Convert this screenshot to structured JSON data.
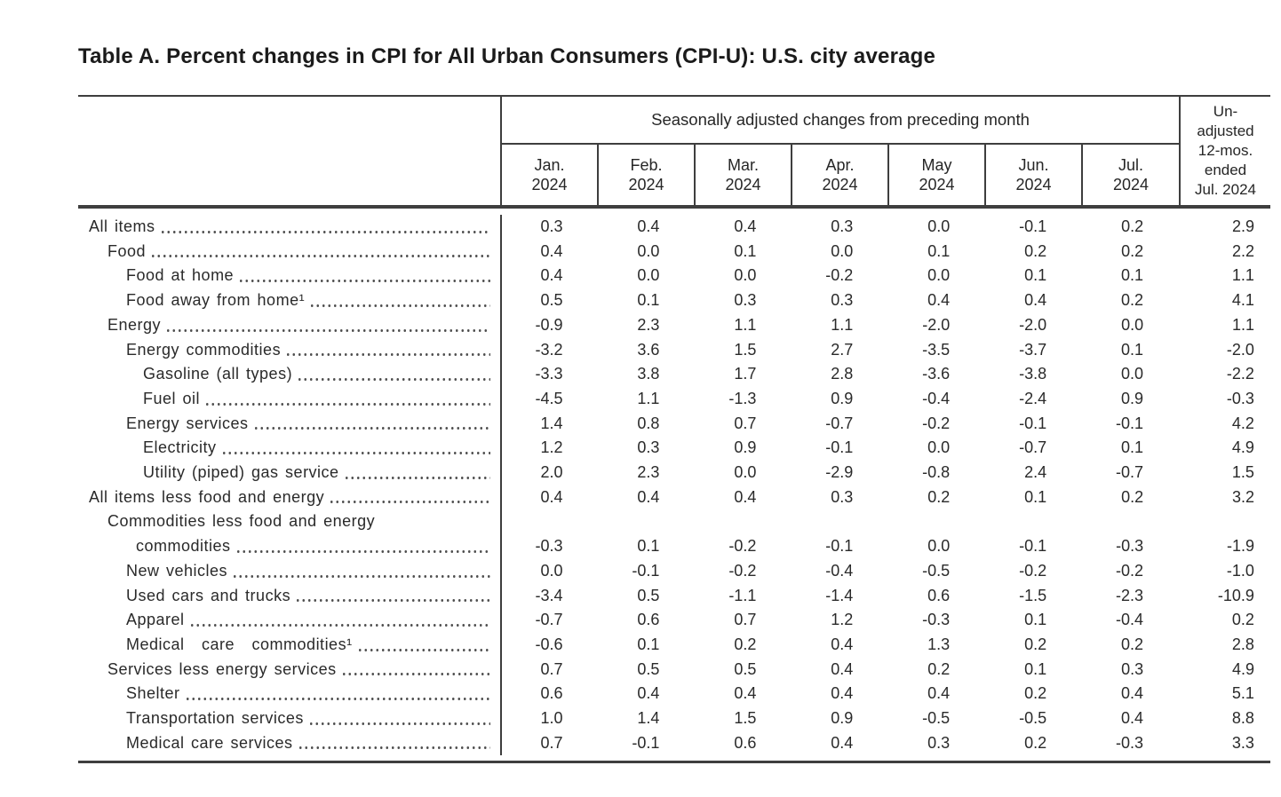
{
  "page": {
    "title": "Table A. Percent changes in CPI for All Urban Consumers (CPI-U): U.S. city average"
  },
  "table": {
    "header": {
      "group_label": "Seasonally adjusted changes from preceding month",
      "months": [
        {
          "line1": "Jan.",
          "line2": "2024"
        },
        {
          "line1": "Feb.",
          "line2": "2024"
        },
        {
          "line1": "Mar.",
          "line2": "2024"
        },
        {
          "line1": "Apr.",
          "line2": "2024"
        },
        {
          "line1": "May",
          "line2": "2024"
        },
        {
          "line1": "Jun.",
          "line2": "2024"
        },
        {
          "line1": "Jul.",
          "line2": "2024"
        }
      ],
      "unadjusted_lines": [
        "Un-",
        "adjusted",
        "12-mos.",
        "ended",
        "Jul. 2024"
      ]
    },
    "rows": [
      {
        "label": "All items",
        "indent": 0,
        "values": [
          "0.3",
          "0.4",
          "0.4",
          "0.3",
          "0.0",
          "-0.1",
          "0.2",
          "2.9"
        ]
      },
      {
        "label": "Food",
        "indent": 1,
        "values": [
          "0.4",
          "0.0",
          "0.1",
          "0.0",
          "0.1",
          "0.2",
          "0.2",
          "2.2"
        ]
      },
      {
        "label": "Food at home",
        "indent": 2,
        "values": [
          "0.4",
          "0.0",
          "0.0",
          "-0.2",
          "0.0",
          "0.1",
          "0.1",
          "1.1"
        ]
      },
      {
        "label": "Food away from home¹",
        "indent": 2,
        "values": [
          "0.5",
          "0.1",
          "0.3",
          "0.3",
          "0.4",
          "0.4",
          "0.2",
          "4.1"
        ]
      },
      {
        "label": "Energy",
        "indent": 1,
        "values": [
          "-0.9",
          "2.3",
          "1.1",
          "1.1",
          "-2.0",
          "-2.0",
          "0.0",
          "1.1"
        ]
      },
      {
        "label": "Energy commodities",
        "indent": 2,
        "values": [
          "-3.2",
          "3.6",
          "1.5",
          "2.7",
          "-3.5",
          "-3.7",
          "0.1",
          "-2.0"
        ]
      },
      {
        "label": "Gasoline (all types)",
        "indent": 3,
        "values": [
          "-3.3",
          "3.8",
          "1.7",
          "2.8",
          "-3.6",
          "-3.8",
          "0.0",
          "-2.2"
        ]
      },
      {
        "label": "Fuel oil",
        "indent": 3,
        "values": [
          "-4.5",
          "1.1",
          "-1.3",
          "0.9",
          "-0.4",
          "-2.4",
          "0.9",
          "-0.3"
        ]
      },
      {
        "label": "Energy services",
        "indent": 2,
        "values": [
          "1.4",
          "0.8",
          "0.7",
          "-0.7",
          "-0.2",
          "-0.1",
          "-0.1",
          "4.2"
        ]
      },
      {
        "label": "Electricity",
        "indent": 3,
        "values": [
          "1.2",
          "0.3",
          "0.9",
          "-0.1",
          "0.0",
          "-0.7",
          "0.1",
          "4.9"
        ]
      },
      {
        "label": "Utility (piped) gas service",
        "indent": 3,
        "values": [
          "2.0",
          "2.3",
          "0.0",
          "-2.9",
          "-0.8",
          "2.4",
          "-0.7",
          "1.5"
        ]
      },
      {
        "label": "All items less food and energy",
        "indent": 0,
        "values": [
          "0.4",
          "0.4",
          "0.4",
          "0.3",
          "0.2",
          "0.1",
          "0.2",
          "3.2"
        ]
      },
      {
        "label": "Commodities less food and energy",
        "label2": "commodities",
        "indent": 1,
        "values": [
          "-0.3",
          "0.1",
          "-0.2",
          "-0.1",
          "0.0",
          "-0.1",
          "-0.3",
          "-1.9"
        ]
      },
      {
        "label": "New vehicles",
        "indent": 2,
        "values": [
          "0.0",
          "-0.1",
          "-0.2",
          "-0.4",
          "-0.5",
          "-0.2",
          "-0.2",
          "-1.0"
        ]
      },
      {
        "label": "Used cars and trucks",
        "indent": 2,
        "values": [
          "-3.4",
          "0.5",
          "-1.1",
          "-1.4",
          "0.6",
          "-1.5",
          "-2.3",
          "-10.9"
        ]
      },
      {
        "label": "Apparel",
        "indent": 2,
        "values": [
          "-0.7",
          "0.6",
          "0.7",
          "1.2",
          "-0.3",
          "0.1",
          "-0.4",
          "0.2"
        ]
      },
      {
        "label": "Medical care commodities¹",
        "indent": 2,
        "spread": true,
        "values": [
          "-0.6",
          "0.1",
          "0.2",
          "0.4",
          "1.3",
          "0.2",
          "0.2",
          "2.8"
        ]
      },
      {
        "label": "Services less energy services",
        "indent": 1,
        "values": [
          "0.7",
          "0.5",
          "0.5",
          "0.4",
          "0.2",
          "0.1",
          "0.3",
          "4.9"
        ]
      },
      {
        "label": "Shelter",
        "indent": 2,
        "values": [
          "0.6",
          "0.4",
          "0.4",
          "0.4",
          "0.4",
          "0.2",
          "0.4",
          "5.1"
        ]
      },
      {
        "label": "Transportation services",
        "indent": 2,
        "values": [
          "1.0",
          "1.4",
          "1.5",
          "0.9",
          "-0.5",
          "-0.5",
          "0.4",
          "8.8"
        ]
      },
      {
        "label": "Medical care services",
        "indent": 2,
        "values": [
          "0.7",
          "-0.1",
          "0.6",
          "0.4",
          "0.3",
          "0.2",
          "-0.3",
          "3.3"
        ]
      }
    ]
  }
}
